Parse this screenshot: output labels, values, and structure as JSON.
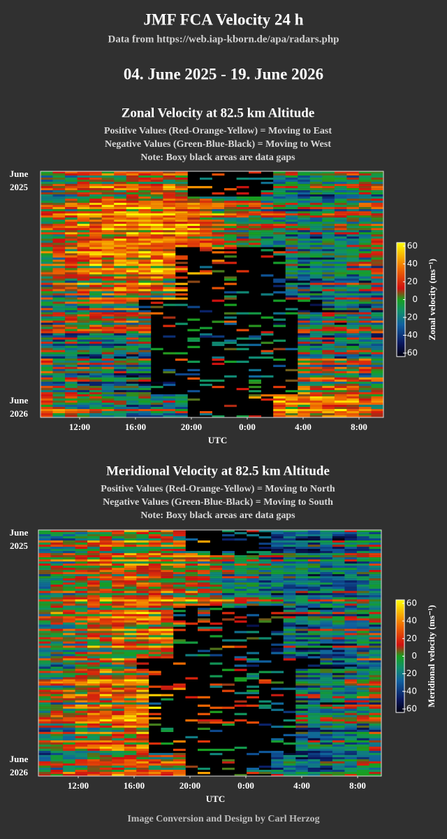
{
  "header": {
    "title": "JMF FCA Velocity 24 h",
    "source": "Data from https://web.iap-kborn.de/apa/radars.php",
    "date_range": "04. June 2025 - 19. June 2026"
  },
  "panels": [
    {
      "title": "Zonal Velocity at 82.5 km Altitude",
      "notes": [
        "Positive Values (Red-Orange-Yellow) = Moving to East",
        "Negative Values (Green-Blue-Black) = Moving to West",
        "Note: Boxy black areas are data gaps"
      ],
      "y_labels": [
        {
          "month": "June",
          "year": "2025"
        },
        {
          "month": "June",
          "year": "2026"
        }
      ],
      "x_ticks": [
        "12:00",
        "16:00",
        "20:00",
        "0:00",
        "4:00",
        "8:00"
      ],
      "x_label": "UTC",
      "colorbar_label": "Zonal velocity (ms⁻¹)",
      "colorbar_lim": [
        -60,
        60
      ],
      "colorbar_ticks": [
        60,
        40,
        20,
        0,
        -20,
        -40,
        -60
      ]
    },
    {
      "title": "Meridional Velocity at 82.5 km Altitude",
      "notes": [
        "Positive Values (Red-Orange-Yellow) = Moving to North",
        "Negative Values (Green-Blue-Black) = Moving to South",
        "Note: Boxy black areas are data gaps"
      ],
      "y_labels": [
        {
          "month": "June",
          "year": "2025"
        },
        {
          "month": "June",
          "year": "2026"
        }
      ],
      "x_ticks": [
        "12:00",
        "16:00",
        "20:00",
        "0:00",
        "4:00",
        "8:00"
      ],
      "x_label": "UTC",
      "colorbar_label": "Meridional velocity (ms⁻¹)",
      "colorbar_lim": [
        -60,
        60
      ],
      "colorbar_ticks": [
        60,
        40,
        20,
        0,
        -20,
        -40,
        -60
      ]
    }
  ],
  "footer": "Image Conversion and Design by Carl Herzog"
}
